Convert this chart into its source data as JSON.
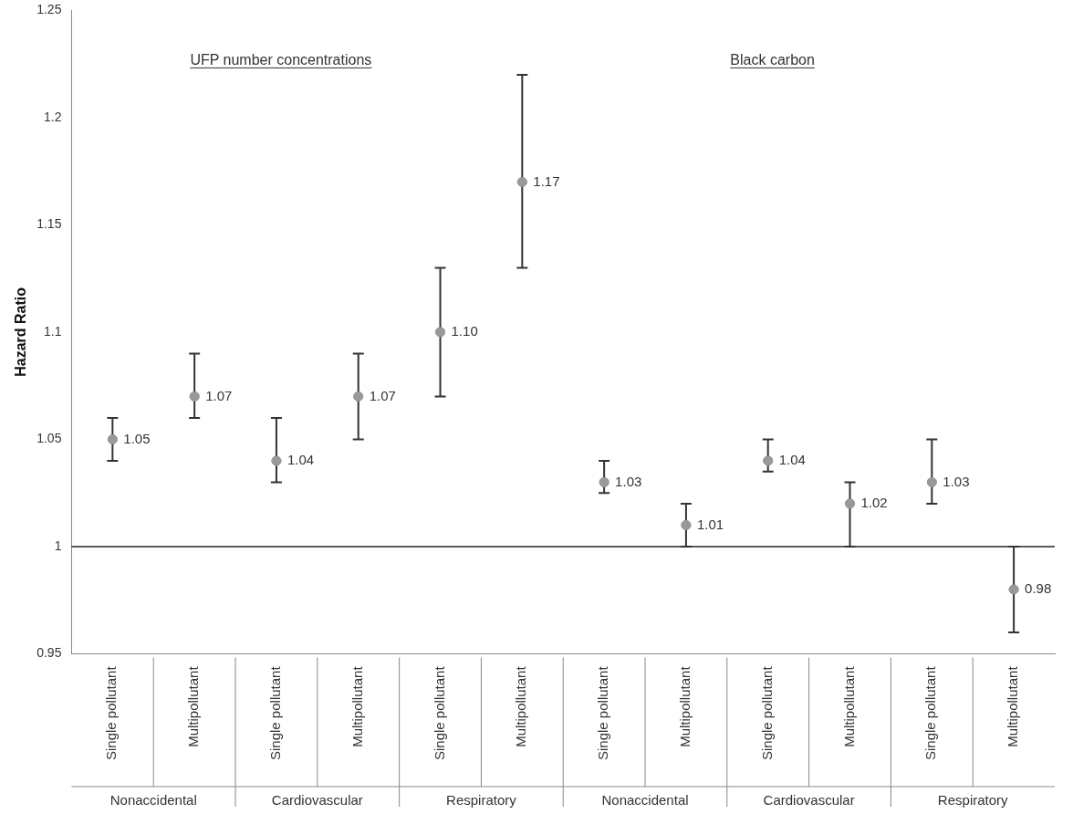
{
  "chart_data": {
    "type": "scatter",
    "ylabel": "Hazard Ratio",
    "categories": [
      "Single pollutant",
      "Multipollutant",
      "Single pollutant",
      "Multipollutant",
      "Single pollutant",
      "Multipollutant",
      "Single pollutant",
      "Multipollutant",
      "Single pollutant",
      "Multipollutant",
      "Single pollutant",
      "Multipollutant"
    ],
    "values": [
      1.05,
      1.07,
      1.04,
      1.07,
      1.1,
      1.17,
      1.03,
      1.01,
      1.04,
      1.02,
      1.03,
      0.98
    ],
    "errors": [
      [
        1.04,
        1.06
      ],
      [
        1.06,
        1.09
      ],
      [
        1.03,
        1.06
      ],
      [
        1.05,
        1.09
      ],
      [
        1.07,
        1.13
      ],
      [
        1.13,
        1.22
      ],
      [
        1.025,
        1.04
      ],
      [
        1.0,
        1.02
      ],
      [
        1.035,
        1.05
      ],
      [
        1.0,
        1.03
      ],
      [
        1.02,
        1.05
      ],
      [
        0.96,
        1.0
      ]
    ],
    "value_labels": [
      "1.05",
      "1.07",
      "1.04",
      "1.07",
      "1.10",
      "1.17",
      "1.03",
      "1.01",
      "1.04",
      "1.02",
      "1.03",
      "0.98"
    ],
    "color": "#999999",
    "marker": "circle",
    "ylim": [
      0.95,
      1.25
    ],
    "yticks": [
      0.95,
      1,
      1.05,
      1.1,
      1.15,
      1.2,
      1.25
    ],
    "grid": false,
    "legend": false,
    "ref_lines": [
      {
        "axis": "y",
        "value": 1,
        "color": "#222222"
      }
    ],
    "annotations": [
      "UFP number concentrations",
      "Black carbon",
      "Nonaccidental",
      "Cardiovascular",
      "Respiratory",
      "Nonaccidental",
      "Cardiovascular",
      "Respiratory"
    ]
  }
}
